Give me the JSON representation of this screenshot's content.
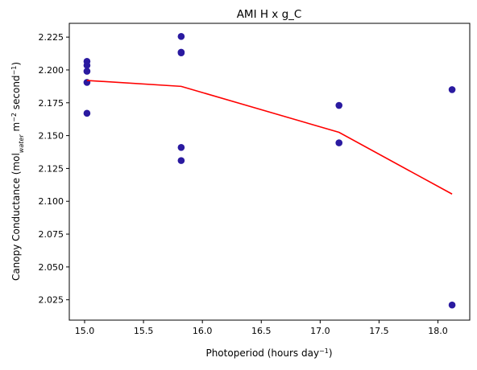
{
  "chart_data": {
    "type": "scatter",
    "title": "AMI H x g_C",
    "xlabel": {
      "main": "Photoperiod (hours day",
      "sup": "−1",
      "tail": ")"
    },
    "ylabel": {
      "prefix": "Canopy Conductance (mol",
      "sub": "water",
      "mid1": " m",
      "sup1": "−2",
      "mid2": " second",
      "sup2": "−1",
      "tail": ")"
    },
    "xlim": [
      14.87,
      18.27
    ],
    "ylim": [
      2.0095,
      2.2355
    ],
    "x_ticks": [
      15.0,
      15.5,
      16.0,
      16.5,
      17.0,
      17.5,
      18.0
    ],
    "x_tick_labels": [
      "15.0",
      "15.5",
      "16.0",
      "16.5",
      "17.0",
      "17.5",
      "18.0"
    ],
    "y_ticks": [
      2.025,
      2.05,
      2.075,
      2.1,
      2.125,
      2.15,
      2.175,
      2.2,
      2.225
    ],
    "y_tick_labels": [
      "2.025",
      "2.050",
      "2.075",
      "2.100",
      "2.125",
      "2.150",
      "2.175",
      "2.200",
      "2.225"
    ],
    "grid": false,
    "series": [
      {
        "kind": "points",
        "color": "#2a1aa0",
        "points": [
          {
            "x": 15.02,
            "y": 2.2065
          },
          {
            "x": 15.02,
            "y": 2.2035
          },
          {
            "x": 15.02,
            "y": 2.199
          },
          {
            "x": 15.02,
            "y": 2.1905
          },
          {
            "x": 15.02,
            "y": 2.167
          },
          {
            "x": 15.82,
            "y": 2.2255
          },
          {
            "x": 15.82,
            "y": 2.2135
          },
          {
            "x": 15.82,
            "y": 2.213
          },
          {
            "x": 15.82,
            "y": 2.141
          },
          {
            "x": 15.82,
            "y": 2.131
          },
          {
            "x": 17.16,
            "y": 2.173
          },
          {
            "x": 17.16,
            "y": 2.1445
          },
          {
            "x": 18.12,
            "y": 2.185
          },
          {
            "x": 18.12,
            "y": 2.021
          }
        ]
      },
      {
        "kind": "line",
        "color": "#ff0000",
        "points": [
          {
            "x": 15.02,
            "y": 2.192
          },
          {
            "x": 15.82,
            "y": 2.1875
          },
          {
            "x": 17.16,
            "y": 2.1525
          },
          {
            "x": 18.12,
            "y": 2.1055
          }
        ]
      }
    ]
  }
}
